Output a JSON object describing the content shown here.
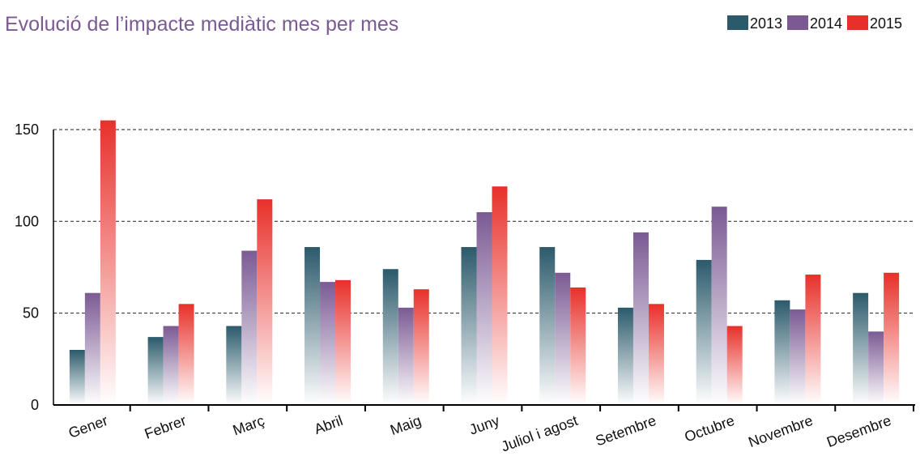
{
  "chart_data": {
    "type": "bar",
    "title": "Evolució de l’impacte mediàtic mes per mes",
    "categories": [
      "Gener",
      "Febrer",
      "Març",
      "Abril",
      "Maig",
      "Juny",
      "Juliol i agost",
      "Setembre",
      "Octubre",
      "Novembre",
      "Desembre"
    ],
    "series": [
      {
        "name": "2013",
        "color": "#2b5a6b",
        "values": [
          30,
          37,
          43,
          86,
          74,
          86,
          86,
          53,
          79,
          57,
          61
        ]
      },
      {
        "name": "2014",
        "color": "#7b5a94",
        "values": [
          61,
          43,
          84,
          67,
          53,
          105,
          72,
          94,
          108,
          52,
          40
        ]
      },
      {
        "name": "2015",
        "color": "#e8302a",
        "values": [
          155,
          55,
          112,
          68,
          63,
          119,
          64,
          55,
          43,
          71,
          72
        ]
      }
    ],
    "ylim": [
      0,
      160
    ],
    "yticks": [
      0,
      50,
      100,
      150
    ],
    "grid": true,
    "legend": "top-right"
  }
}
